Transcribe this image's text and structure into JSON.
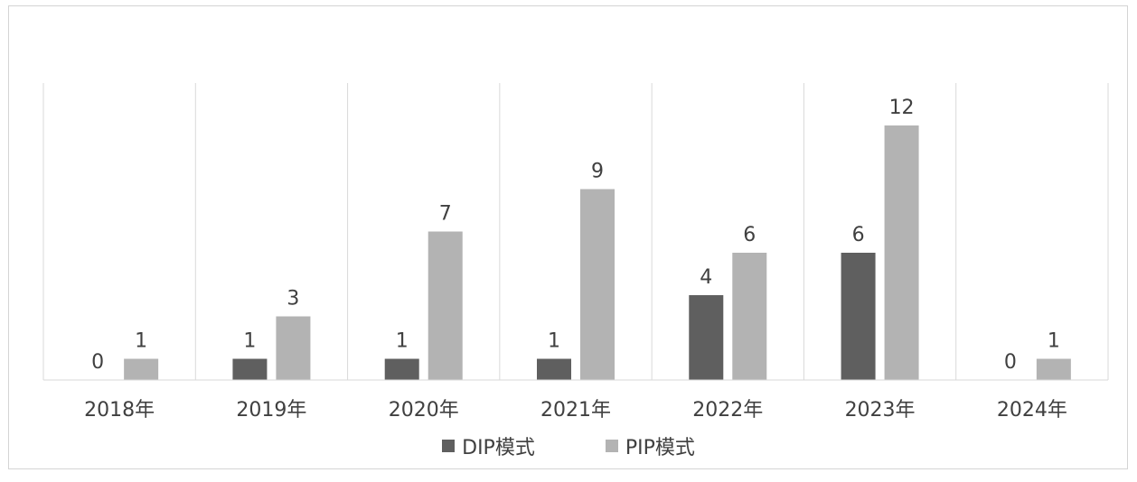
{
  "chart_data": {
    "type": "bar",
    "categories": [
      "2018年",
      "2019年",
      "2020年",
      "2021年",
      "2022年",
      "2023年",
      "2024年"
    ],
    "series": [
      {
        "name": "DIP模式",
        "values": [
          0,
          1,
          1,
          1,
          4,
          6,
          0
        ],
        "color": "#5f5f5f"
      },
      {
        "name": "PIP模式",
        "values": [
          1,
          3,
          7,
          9,
          6,
          12,
          1
        ],
        "color": "#b3b3b3"
      }
    ],
    "title": "",
    "xlabel": "",
    "ylabel": "",
    "ylim": [
      0,
      14
    ],
    "grid": "vertical category separators",
    "legend_position": "bottom",
    "data_labels": true
  }
}
